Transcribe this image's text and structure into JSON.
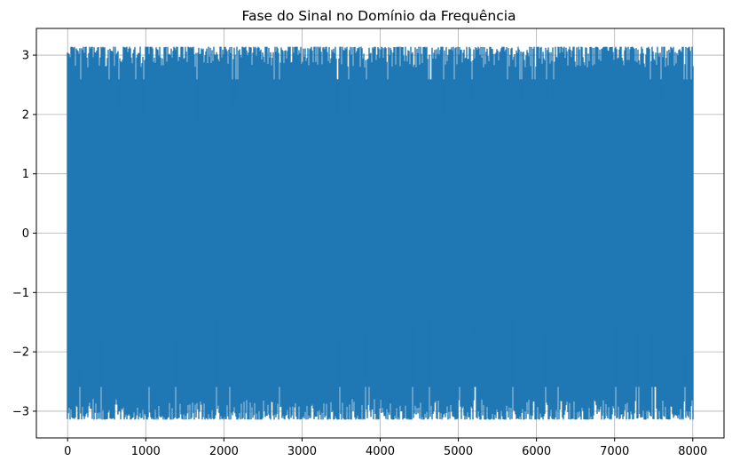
{
  "chart_data": {
    "type": "line",
    "title": "Fase do Sinal no Domínio da Frequência",
    "xlabel": "",
    "ylabel": "",
    "xlim": [
      -400,
      8400
    ],
    "ylim": [
      -3.45,
      3.45
    ],
    "grid": true,
    "series": [
      {
        "color": "#1f77b4",
        "x_start": 0,
        "x_end": 8000,
        "points": 8000,
        "y_min": -3.1416,
        "y_max": 3.1416
      }
    ],
    "xticks": [
      0,
      1000,
      2000,
      3000,
      4000,
      5000,
      6000,
      7000,
      8000
    ],
    "xtick_labels": [
      "0",
      "1000",
      "2000",
      "3000",
      "4000",
      "5000",
      "6000",
      "7000",
      "8000"
    ],
    "yticks": [
      -3,
      -2,
      -1,
      0,
      1,
      2,
      3
    ],
    "ytick_labels": [
      "−3",
      "−2",
      "−1",
      "0",
      "1",
      "2",
      "3"
    ],
    "colors": {
      "series": "#1f77b4",
      "grid": "#b0b0b0",
      "axes": "#000000",
      "background": "#ffffff"
    }
  }
}
